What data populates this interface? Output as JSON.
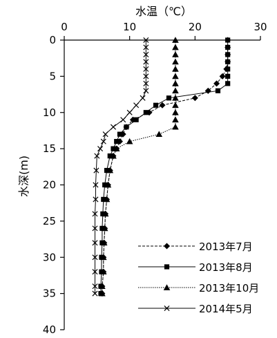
{
  "chart_data": {
    "type": "line",
    "title": "",
    "xlabel": "水温（℃）",
    "ylabel": "水深(m)",
    "x_position": "top",
    "y_inverted": true,
    "xlim": [
      0,
      30
    ],
    "ylim": [
      0,
      40
    ],
    "x_ticks": [
      0,
      10,
      20,
      30
    ],
    "y_ticks": [
      0,
      5,
      10,
      15,
      20,
      25,
      30,
      35,
      40
    ],
    "grid": false,
    "legend_position": "bottom-right",
    "series": [
      {
        "name": "2013年7月",
        "marker": "diamond",
        "line_style": "dashed",
        "points": [
          [
            25.0,
            0
          ],
          [
            25.0,
            1
          ],
          [
            25.0,
            2
          ],
          [
            25.0,
            3
          ],
          [
            24.8,
            4
          ],
          [
            24.2,
            5
          ],
          [
            23.3,
            6
          ],
          [
            22.0,
            7
          ],
          [
            20.0,
            8
          ],
          [
            15.0,
            9
          ],
          [
            13.0,
            10
          ],
          [
            10.5,
            11
          ],
          [
            9.5,
            12
          ],
          [
            9.0,
            13
          ],
          [
            8.5,
            14
          ],
          [
            8.0,
            15
          ],
          [
            7.5,
            16
          ],
          [
            7.0,
            18
          ],
          [
            6.7,
            20
          ],
          [
            6.5,
            22
          ],
          [
            6.3,
            24
          ],
          [
            6.2,
            26
          ],
          [
            6.1,
            28
          ],
          [
            6.0,
            30
          ],
          [
            6.0,
            32
          ],
          [
            5.8,
            34
          ],
          [
            5.8,
            35
          ]
        ]
      },
      {
        "name": "2013年8月",
        "marker": "square",
        "line_style": "solid",
        "points": [
          [
            25.0,
            0
          ],
          [
            25.0,
            1
          ],
          [
            25.0,
            2
          ],
          [
            25.0,
            3
          ],
          [
            25.0,
            4
          ],
          [
            25.0,
            5
          ],
          [
            25.0,
            6
          ],
          [
            23.5,
            7
          ],
          [
            16.0,
            8
          ],
          [
            14.0,
            9
          ],
          [
            12.5,
            10
          ],
          [
            11.0,
            11
          ],
          [
            9.5,
            12
          ],
          [
            8.5,
            13
          ],
          [
            8.0,
            14
          ],
          [
            7.5,
            15
          ],
          [
            7.0,
            16
          ],
          [
            6.5,
            18
          ],
          [
            6.2,
            20
          ],
          [
            6.0,
            22
          ],
          [
            5.9,
            24
          ],
          [
            5.8,
            26
          ],
          [
            5.8,
            28
          ],
          [
            5.7,
            30
          ],
          [
            5.7,
            32
          ],
          [
            5.6,
            34
          ],
          [
            5.6,
            35
          ]
        ]
      },
      {
        "name": "2013年10月",
        "marker": "triangle",
        "line_style": "dotted",
        "points": [
          [
            17.0,
            0
          ],
          [
            17.0,
            1
          ],
          [
            17.0,
            2
          ],
          [
            17.0,
            3
          ],
          [
            17.0,
            4
          ],
          [
            17.0,
            5
          ],
          [
            17.0,
            6
          ],
          [
            17.0,
            7
          ],
          [
            17.0,
            8
          ],
          [
            17.0,
            9
          ],
          [
            17.0,
            10
          ],
          [
            17.0,
            11
          ],
          [
            17.0,
            12
          ],
          [
            14.5,
            13
          ],
          [
            10.0,
            14
          ],
          [
            8.0,
            15
          ],
          [
            7.5,
            16
          ],
          [
            7.0,
            18
          ],
          [
            6.7,
            20
          ],
          [
            6.5,
            22
          ],
          [
            6.3,
            24
          ],
          [
            6.2,
            26
          ],
          [
            6.1,
            28
          ],
          [
            6.0,
            30
          ],
          [
            6.0,
            32
          ],
          [
            5.8,
            34
          ],
          [
            5.8,
            35
          ]
        ]
      },
      {
        "name": "2014年5月",
        "marker": "x",
        "line_style": "solid",
        "points": [
          [
            12.5,
            0
          ],
          [
            12.5,
            1
          ],
          [
            12.5,
            2
          ],
          [
            12.5,
            3
          ],
          [
            12.5,
            4
          ],
          [
            12.5,
            5
          ],
          [
            12.5,
            6
          ],
          [
            12.5,
            7
          ],
          [
            12.0,
            8
          ],
          [
            11.0,
            9
          ],
          [
            10.0,
            10
          ],
          [
            9.0,
            11
          ],
          [
            7.5,
            12
          ],
          [
            6.3,
            13
          ],
          [
            6.0,
            14
          ],
          [
            5.5,
            15
          ],
          [
            5.0,
            16
          ],
          [
            4.9,
            18
          ],
          [
            4.8,
            20
          ],
          [
            4.8,
            22
          ],
          [
            4.7,
            24
          ],
          [
            4.7,
            26
          ],
          [
            4.7,
            28
          ],
          [
            4.7,
            30
          ],
          [
            4.7,
            32
          ],
          [
            4.7,
            34
          ],
          [
            4.7,
            35
          ]
        ]
      }
    ]
  }
}
